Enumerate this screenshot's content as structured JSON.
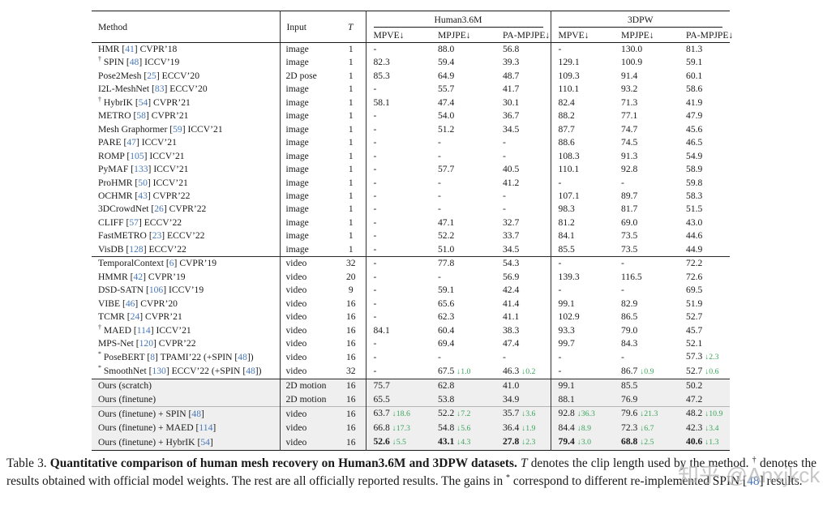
{
  "colors": {
    "citation": "#4878b8",
    "gain": "#3aa55c",
    "row-shade": "#efefef"
  },
  "table": {
    "header": {
      "method_label": "Method",
      "input_label": "Input",
      "t_label": "T",
      "group_labels": [
        "Human3.6M",
        "3DPW"
      ],
      "sub_labels": [
        "MPVE↓",
        "MPJPE↓",
        "PA-MPJPE↓",
        "MPVE↓",
        "MPJPE↓",
        "PA-MPJPE↓"
      ]
    },
    "sections": [
      {
        "name": "image-based-methods",
        "shaded": false,
        "separator": null,
        "rows": [
          {
            "m": "HMR [41] CVPR’18",
            "in": "image",
            "t": "1",
            "c": [
              {
                "v": "-"
              },
              {
                "v": "88.0"
              },
              {
                "v": "56.8"
              },
              {
                "v": "-"
              },
              {
                "v": "130.0"
              },
              {
                "v": "81.3"
              }
            ]
          },
          {
            "m": "† SPIN [48] ICCV’19",
            "in": "image",
            "t": "1",
            "c": [
              {
                "v": "82.3"
              },
              {
                "v": "59.4"
              },
              {
                "v": "39.3"
              },
              {
                "v": "129.1"
              },
              {
                "v": "100.9"
              },
              {
                "v": "59.1"
              }
            ]
          },
          {
            "m": "Pose2Mesh [25] ECCV’20",
            "in": "2D pose",
            "t": "1",
            "c": [
              {
                "v": "85.3"
              },
              {
                "v": "64.9"
              },
              {
                "v": "48.7"
              },
              {
                "v": "109.3"
              },
              {
                "v": "91.4"
              },
              {
                "v": "60.1"
              }
            ]
          },
          {
            "m": "I2L-MeshNet [83] ECCV’20",
            "in": "image",
            "t": "1",
            "c": [
              {
                "v": "-"
              },
              {
                "v": "55.7"
              },
              {
                "v": "41.7"
              },
              {
                "v": "110.1"
              },
              {
                "v": "93.2"
              },
              {
                "v": "58.6"
              }
            ]
          },
          {
            "m": "† HybrIK [54] CVPR’21",
            "in": "image",
            "t": "1",
            "c": [
              {
                "v": "58.1"
              },
              {
                "v": "47.4"
              },
              {
                "v": "30.1"
              },
              {
                "v": "82.4"
              },
              {
                "v": "71.3"
              },
              {
                "v": "41.9"
              }
            ]
          },
          {
            "m": "METRO [58] CVPR’21",
            "in": "image",
            "t": "1",
            "c": [
              {
                "v": "-"
              },
              {
                "v": "54.0"
              },
              {
                "v": "36.7"
              },
              {
                "v": "88.2"
              },
              {
                "v": "77.1"
              },
              {
                "v": "47.9"
              }
            ]
          },
          {
            "m": "Mesh Graphormer [59] ICCV’21",
            "in": "image",
            "t": "1",
            "c": [
              {
                "v": "-"
              },
              {
                "v": "51.2"
              },
              {
                "v": "34.5"
              },
              {
                "v": "87.7"
              },
              {
                "v": "74.7"
              },
              {
                "v": "45.6"
              }
            ]
          },
          {
            "m": "PARE [47] ICCV’21",
            "in": "image",
            "t": "1",
            "c": [
              {
                "v": "-"
              },
              {
                "v": "-"
              },
              {
                "v": "-"
              },
              {
                "v": "88.6"
              },
              {
                "v": "74.5"
              },
              {
                "v": "46.5"
              }
            ]
          },
          {
            "m": "ROMP [105] ICCV’21",
            "in": "image",
            "t": "1",
            "c": [
              {
                "v": "-"
              },
              {
                "v": "-"
              },
              {
                "v": "-"
              },
              {
                "v": "108.3"
              },
              {
                "v": "91.3"
              },
              {
                "v": "54.9"
              }
            ]
          },
          {
            "m": "PyMAF [133] ICCV’21",
            "in": "image",
            "t": "1",
            "c": [
              {
                "v": "-"
              },
              {
                "v": "57.7"
              },
              {
                "v": "40.5"
              },
              {
                "v": "110.1"
              },
              {
                "v": "92.8"
              },
              {
                "v": "58.9"
              }
            ]
          },
          {
            "m": "ProHMR [50] ICCV’21",
            "in": "image",
            "t": "1",
            "c": [
              {
                "v": "-"
              },
              {
                "v": "-"
              },
              {
                "v": "41.2"
              },
              {
                "v": "-"
              },
              {
                "v": "-"
              },
              {
                "v": "59.8"
              }
            ]
          },
          {
            "m": "OCHMR [43] CVPR’22",
            "in": "image",
            "t": "1",
            "c": [
              {
                "v": "-"
              },
              {
                "v": "-"
              },
              {
                "v": "-"
              },
              {
                "v": "107.1"
              },
              {
                "v": "89.7"
              },
              {
                "v": "58.3"
              }
            ]
          },
          {
            "m": "3DCrowdNet [26] CVPR’22",
            "in": "image",
            "t": "1",
            "c": [
              {
                "v": "-"
              },
              {
                "v": "-"
              },
              {
                "v": "-"
              },
              {
                "v": "98.3"
              },
              {
                "v": "81.7"
              },
              {
                "v": "51.5"
              }
            ]
          },
          {
            "m": "CLIFF [57] ECCV’22",
            "in": "image",
            "t": "1",
            "c": [
              {
                "v": "-"
              },
              {
                "v": "47.1"
              },
              {
                "v": "32.7"
              },
              {
                "v": "81.2"
              },
              {
                "v": "69.0"
              },
              {
                "v": "43.0"
              }
            ]
          },
          {
            "m": "FastMETRO [23] ECCV’22",
            "in": "image",
            "t": "1",
            "c": [
              {
                "v": "-"
              },
              {
                "v": "52.2"
              },
              {
                "v": "33.7"
              },
              {
                "v": "84.1"
              },
              {
                "v": "73.5"
              },
              {
                "v": "44.6"
              }
            ]
          },
          {
            "m": "VisDB [128] ECCV’22",
            "in": "image",
            "t": "1",
            "c": [
              {
                "v": "-"
              },
              {
                "v": "51.0"
              },
              {
                "v": "34.5"
              },
              {
                "v": "85.5"
              },
              {
                "v": "73.5"
              },
              {
                "v": "44.9"
              }
            ]
          }
        ]
      },
      {
        "name": "video-based-methods",
        "shaded": false,
        "separator": "strong",
        "rows": [
          {
            "m": "TemporalContext [6] CVPR’19",
            "in": "video",
            "t": "32",
            "c": [
              {
                "v": "-"
              },
              {
                "v": "77.8"
              },
              {
                "v": "54.3"
              },
              {
                "v": "-"
              },
              {
                "v": "-"
              },
              {
                "v": "72.2"
              }
            ]
          },
          {
            "m": "HMMR [42] CVPR’19",
            "in": "video",
            "t": "20",
            "c": [
              {
                "v": "-"
              },
              {
                "v": "-"
              },
              {
                "v": "56.9"
              },
              {
                "v": "139.3"
              },
              {
                "v": "116.5"
              },
              {
                "v": "72.6"
              }
            ]
          },
          {
            "m": "DSD-SATN [106] ICCV’19",
            "in": "video",
            "t": "9",
            "c": [
              {
                "v": "-"
              },
              {
                "v": "59.1"
              },
              {
                "v": "42.4"
              },
              {
                "v": "-"
              },
              {
                "v": "-"
              },
              {
                "v": "69.5"
              }
            ]
          },
          {
            "m": "VIBE [46] CVPR’20",
            "in": "video",
            "t": "16",
            "c": [
              {
                "v": "-"
              },
              {
                "v": "65.6"
              },
              {
                "v": "41.4"
              },
              {
                "v": "99.1"
              },
              {
                "v": "82.9"
              },
              {
                "v": "51.9"
              }
            ]
          },
          {
            "m": "TCMR [24] CVPR’21",
            "in": "video",
            "t": "16",
            "c": [
              {
                "v": "-"
              },
              {
                "v": "62.3"
              },
              {
                "v": "41.1"
              },
              {
                "v": "102.9"
              },
              {
                "v": "86.5"
              },
              {
                "v": "52.7"
              }
            ]
          },
          {
            "m": "† MAED [114] ICCV’21",
            "in": "video",
            "t": "16",
            "c": [
              {
                "v": "84.1"
              },
              {
                "v": "60.4"
              },
              {
                "v": "38.3"
              },
              {
                "v": "93.3"
              },
              {
                "v": "79.0"
              },
              {
                "v": "45.7"
              }
            ]
          },
          {
            "m": "MPS-Net [120] CVPR’22",
            "in": "video",
            "t": "16",
            "c": [
              {
                "v": "-"
              },
              {
                "v": "69.4"
              },
              {
                "v": "47.4"
              },
              {
                "v": "99.7"
              },
              {
                "v": "84.3"
              },
              {
                "v": "52.1"
              }
            ]
          },
          {
            "m": "* PoseBERT [8] TPAMI’22 (+SPIN [48])",
            "in": "video",
            "t": "16",
            "c": [
              {
                "v": "-"
              },
              {
                "v": "-"
              },
              {
                "v": "-"
              },
              {
                "v": "-"
              },
              {
                "v": "-"
              },
              {
                "v": "57.3",
                "g": "2.3"
              }
            ]
          },
          {
            "m": "* SmoothNet [130] ECCV’22 (+SPIN [48])",
            "in": "video",
            "t": "32",
            "c": [
              {
                "v": "-"
              },
              {
                "v": "67.5",
                "g": "1.0"
              },
              {
                "v": "46.3",
                "g": "0.2"
              },
              {
                "v": "-"
              },
              {
                "v": "86.7",
                "g": "0.9"
              },
              {
                "v": "52.7",
                "g": "0.6"
              }
            ]
          }
        ]
      },
      {
        "name": "ours-standalone",
        "shaded": true,
        "separator": "strong",
        "rows": [
          {
            "m": "Ours (scratch)",
            "in": "2D motion",
            "t": "16",
            "c": [
              {
                "v": "75.7"
              },
              {
                "v": "62.8"
              },
              {
                "v": "41.0"
              },
              {
                "v": "99.1"
              },
              {
                "v": "85.5"
              },
              {
                "v": "50.2"
              }
            ]
          },
          {
            "m": "Ours (finetune)",
            "in": "2D motion",
            "t": "16",
            "c": [
              {
                "v": "65.5"
              },
              {
                "v": "53.8"
              },
              {
                "v": "34.9"
              },
              {
                "v": "88.1"
              },
              {
                "v": "76.9"
              },
              {
                "v": "47.2"
              }
            ]
          }
        ]
      },
      {
        "name": "ours-combined",
        "shaded": true,
        "separator": "thin",
        "rows": [
          {
            "m": "Ours (finetune) + SPIN [48]",
            "in": "video",
            "t": "16",
            "c": [
              {
                "v": "63.7",
                "g": "18.6"
              },
              {
                "v": "52.2",
                "g": "7.2"
              },
              {
                "v": "35.7",
                "g": "3.6"
              },
              {
                "v": "92.8",
                "g": "36.3"
              },
              {
                "v": "79.6",
                "g": "21.3"
              },
              {
                "v": "48.2",
                "g": "10.9"
              }
            ]
          },
          {
            "m": "Ours (finetune) + MAED [114]",
            "in": "video",
            "t": "16",
            "c": [
              {
                "v": "66.8",
                "g": "17.3"
              },
              {
                "v": "54.8",
                "g": "5.6"
              },
              {
                "v": "36.4",
                "g": "1.9"
              },
              {
                "v": "84.4",
                "g": "8.9"
              },
              {
                "v": "72.3",
                "g": "6.7"
              },
              {
                "v": "42.3",
                "g": "3.4"
              }
            ]
          },
          {
            "m": "Ours (finetune) + HybrIK [54]",
            "in": "video",
            "t": "16",
            "c": [
              {
                "v": "52.6",
                "g": "5.5",
                "b": true
              },
              {
                "v": "43.1",
                "g": "4.3",
                "b": true
              },
              {
                "v": "27.8",
                "g": "2.3",
                "b": true
              },
              {
                "v": "79.4",
                "g": "3.0",
                "b": true
              },
              {
                "v": "68.8",
                "g": "2.5",
                "b": true
              },
              {
                "v": "40.6",
                "g": "1.3",
                "b": true
              }
            ]
          }
        ]
      }
    ]
  },
  "caption": {
    "segments": [
      {
        "t": "Table 3. "
      },
      {
        "t": "Quantitative comparison of human mesh recovery on Human3.6M and 3DPW datasets. ",
        "s": "b"
      },
      {
        "t": "T",
        "s": "i"
      },
      {
        "t": " denotes the clip length used by the method. "
      },
      {
        "t": "†",
        "s": "sup"
      },
      {
        "t": " denotes the results obtained with official model weights. The rest are all officially reported results. The gains in "
      },
      {
        "t": "*",
        "s": "sup"
      },
      {
        "t": " correspond to different re-implemented SPIN [48] results."
      }
    ]
  },
  "watermark": {
    "text": "知乎 @Anxjkck"
  }
}
